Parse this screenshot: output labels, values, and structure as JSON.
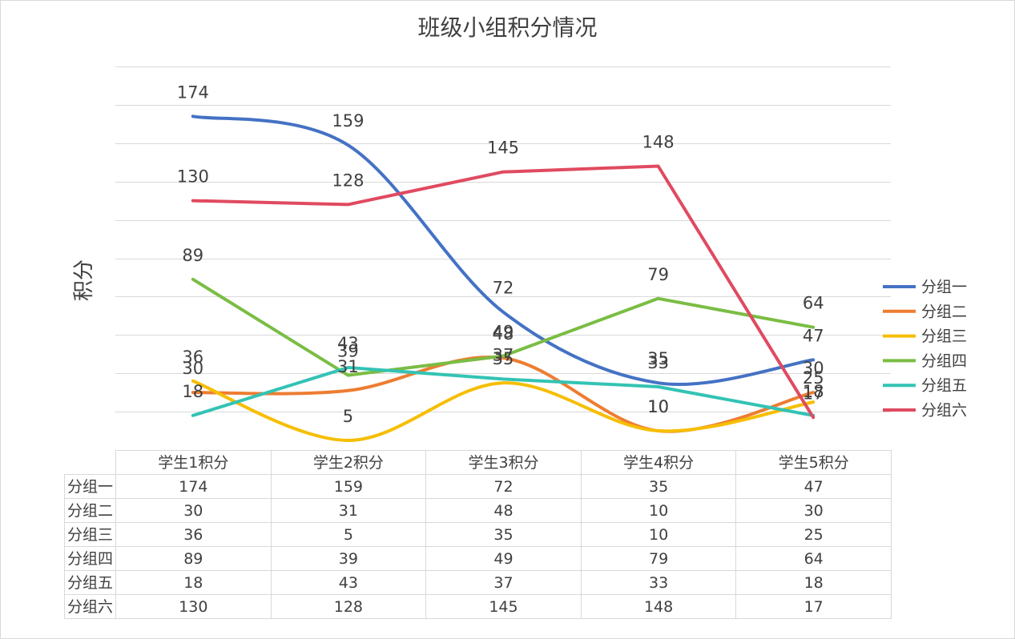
{
  "chart_data": {
    "type": "line",
    "title": "班级小组积分情况",
    "ylabel": "积分",
    "categories": [
      "学生1积分",
      "学生2积分",
      "学生3积分",
      "学生4积分",
      "学生5积分"
    ],
    "ylim": [
      0,
      200
    ],
    "y_grid_step": 20,
    "grid": true,
    "y_tick_labels_shown": false,
    "legend": "right",
    "data_labels": true,
    "data_table": true,
    "series": [
      {
        "name": "分组一",
        "values": [
          174,
          159,
          72,
          35,
          47
        ],
        "color": "#4472C4",
        "smooth": true
      },
      {
        "name": "分组二",
        "values": [
          30,
          31,
          48,
          10,
          30
        ],
        "color": "#ED7D31",
        "smooth": true
      },
      {
        "name": "分组三",
        "values": [
          36,
          5,
          35,
          10,
          25
        ],
        "color": "#F6BE00",
        "smooth": true
      },
      {
        "name": "分组四",
        "values": [
          89,
          39,
          49,
          79,
          64
        ],
        "color": "#7ABD44",
        "smooth": false
      },
      {
        "name": "分组五",
        "values": [
          18,
          43,
          37,
          33,
          18
        ],
        "color": "#33C3B4",
        "smooth": false
      },
      {
        "name": "分组六",
        "values": [
          130,
          128,
          145,
          148,
          17
        ],
        "color": "#E04A60",
        "smooth": false
      }
    ]
  }
}
